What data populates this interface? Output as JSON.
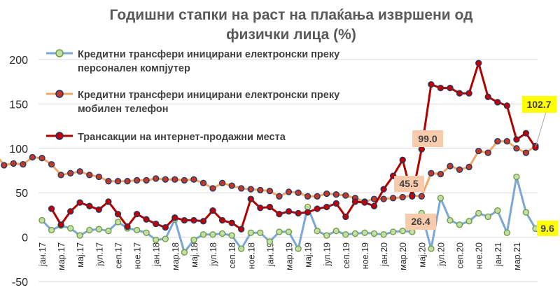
{
  "chart_data": {
    "type": "line",
    "title_line1": "Годишни стапки на раст на плаќања извршени од",
    "title_line2": "физички лица (%)",
    "y_ticks": [
      "200",
      "150",
      "100",
      "50",
      "0",
      "-50"
    ],
    "ylim": [
      -50,
      200
    ],
    "x_tick_labels": [
      "јан.17",
      "мар.17",
      "мај.17",
      "јул.17",
      "сеп.17",
      "ное.17",
      "јан.18",
      "мар.18",
      "мај.18",
      "јул.18",
      "сеп.18",
      "ное.18",
      "јан.19",
      "мар.19",
      "мај.19",
      "јул.19",
      "сеп.19",
      "ное.19",
      "јан.20",
      "мар.20",
      "мај.20",
      "јул.20",
      "сеп.20",
      "ное.20",
      "јан.21",
      "мар.21"
    ],
    "grid": true,
    "legend_placement": "top-left",
    "series": [
      {
        "name": "Кредитни трансфери иницирани електронски преку персонален компјутер",
        "name_line1": "Кредитни трансфери иницирани електронски преку",
        "name_line2": "персонален компјутер",
        "line_color": "#7ba7d7",
        "marker_fill": "#c5dea8",
        "marker_stroke": "#6b9a3c",
        "values": [
          19,
          8,
          13,
          10,
          2,
          8,
          9,
          7,
          17,
          10,
          8,
          5,
          -3,
          -2,
          20,
          -17,
          -3,
          3,
          3,
          4,
          2,
          -13,
          5,
          5,
          -5,
          6,
          6,
          -13,
          34,
          7,
          2,
          7,
          3,
          4,
          5,
          4,
          3,
          6,
          7,
          6,
          27,
          -13,
          44,
          19,
          14,
          18,
          27,
          23,
          30,
          5,
          68,
          28,
          9.6
        ]
      },
      {
        "name": "Кредитни трансфери иницирани електронски преку мобилен телефон",
        "name_line1": "Кредитни трансфери иницирани електронски преку",
        "name_line2": "мобилен телефон",
        "line_color": "#f0a868",
        "marker_fill": "#c0392b",
        "marker_stroke": "#1f3864",
        "values": [
          95,
          81,
          83,
          82,
          90,
          89,
          82,
          70,
          72,
          74,
          70,
          68,
          63,
          63,
          63,
          64,
          64,
          66,
          65,
          65,
          64,
          65,
          61,
          55,
          61,
          58,
          55,
          54,
          53,
          52,
          46,
          51,
          50,
          46,
          46,
          49,
          48,
          47,
          44,
          40,
          43,
          43,
          44,
          45,
          47,
          46,
          72,
          71,
          80,
          76,
          79,
          97,
          95,
          108,
          108,
          100,
          95,
          102.7
        ]
      },
      {
        "name": "Трансакции на интернет-продажни места",
        "line_color": "#b00000",
        "marker_fill": "#c00000",
        "marker_stroke": "#1f3864",
        "values": [
          32,
          14,
          29,
          39,
          35,
          31,
          40,
          26,
          12,
          26,
          20,
          15,
          11,
          22,
          19,
          19,
          18,
          30,
          19,
          16,
          9,
          43,
          33,
          34,
          26,
          29,
          27,
          28,
          32,
          34,
          38,
          23,
          40,
          39,
          35,
          54,
          69,
          87,
          46,
          99,
          172,
          168,
          168,
          162,
          162,
          196,
          158,
          152,
          148,
          110,
          117,
          101
        ]
      }
    ],
    "data_labels": [
      "102.7",
      "99.0",
      "45.5",
      "26.4",
      "9.6"
    ]
  }
}
